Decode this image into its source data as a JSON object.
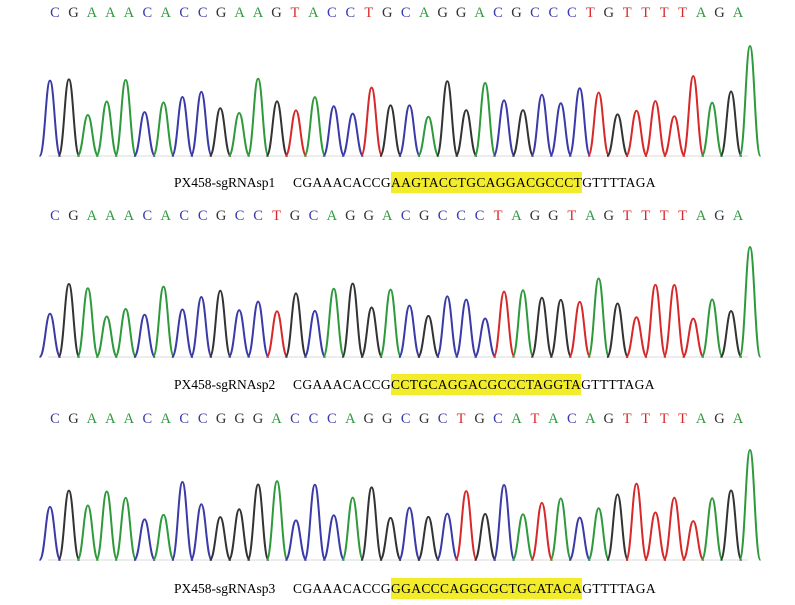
{
  "colors": {
    "A": "#2e9a3c",
    "C": "#3a3aa8",
    "G": "#333333",
    "T": "#d7282a",
    "highlight": "#f2ec2a"
  },
  "panels": [
    {
      "bases": "CGAAACACCGAAGTACCTGCAGGACGCCCTGTTTTAGA",
      "label": "PX458-sgRNAsp1",
      "seq_pre": "CGAAACACCG",
      "seq_hl": "AAGTACCTGCAGGACGCCCT",
      "seq_post": "GTTTTAGA"
    },
    {
      "bases": "CGAAACACCGCCTGCAGGACGCCCTAGGTAGTTTTAGA",
      "label": "PX458-sgRNAsp2",
      "seq_pre": "CGAAACACCG",
      "seq_hl": "CCTGCAGGACGCCCTAGGTA",
      "seq_post": "GTTTTAGA"
    },
    {
      "bases": "CGAAACACCGGGACCCAGGCGCTGCATACAGTTTTAGA",
      "label": "PX458-sgRNAsp3",
      "seq_pre": "CGAAACACCG",
      "seq_hl": "GGACCCAGGCGCTGCATACA",
      "seq_post": "GTTTTAGA"
    }
  ]
}
